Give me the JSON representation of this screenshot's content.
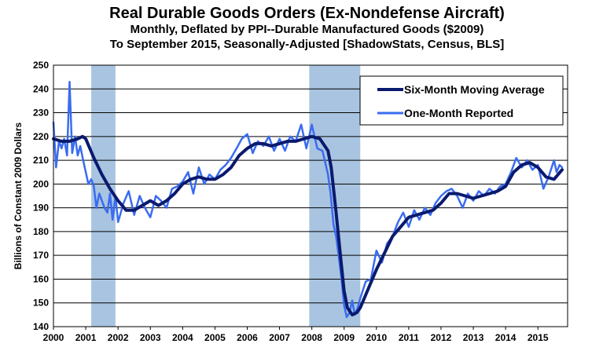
{
  "chart_data": {
    "type": "line",
    "title": "Real Durable Goods Orders (Ex-Nondefense Aircraft)",
    "subtitle_1": "Monthly, Deflated by PPI--Durable Manufactured Goods ($2009)",
    "subtitle_2": "To September 2015, Seasonally-Adjusted [ShadowStats, Census, BLS]",
    "ylabel": "Billions  of Constant 2009 Dollars",
    "xlabel": "",
    "ylim": [
      140,
      250
    ],
    "yticks": [
      140,
      150,
      160,
      170,
      180,
      190,
      200,
      210,
      220,
      230,
      240,
      250
    ],
    "xlim": [
      2000,
      2015.92
    ],
    "xticks": [
      "2000",
      "2001",
      "2002",
      "2003",
      "2004",
      "2005",
      "2006",
      "2007",
      "2008",
      "2009",
      "2010",
      "2011",
      "2012",
      "2013",
      "2014",
      "2015"
    ],
    "grid": "horizontal",
    "legend_position": "top-right",
    "recessions": [
      {
        "start": 2001.17,
        "end": 2001.92
      },
      {
        "start": 2007.92,
        "end": 2009.5
      }
    ],
    "colors": {
      "moving_average": "#0a1a6e",
      "one_month": "#3a6cf0",
      "recession": "#a9c4e0"
    },
    "series": [
      {
        "name": "Six-Month Moving Average",
        "x": [
          2000.0,
          2000.25,
          2000.5,
          2000.75,
          2000.9,
          2001.0,
          2001.25,
          2001.5,
          2001.75,
          2002.0,
          2002.25,
          2002.5,
          2002.75,
          2003.0,
          2003.25,
          2003.5,
          2003.75,
          2004.0,
          2004.25,
          2004.5,
          2004.75,
          2005.0,
          2005.25,
          2005.5,
          2005.75,
          2006.0,
          2006.25,
          2006.5,
          2006.75,
          2007.0,
          2007.25,
          2007.5,
          2007.75,
          2008.0,
          2008.25,
          2008.5,
          2008.6,
          2008.75,
          2008.9,
          2009.0,
          2009.1,
          2009.25,
          2009.4,
          2009.5,
          2009.75,
          2010.0,
          2010.25,
          2010.5,
          2010.75,
          2011.0,
          2011.25,
          2011.5,
          2011.75,
          2012.0,
          2012.25,
          2012.5,
          2012.75,
          2013.0,
          2013.25,
          2013.5,
          2013.75,
          2014.0,
          2014.25,
          2014.5,
          2014.75,
          2015.0,
          2015.25,
          2015.5,
          2015.75
        ],
        "values": [
          219,
          218,
          218,
          219,
          220,
          219,
          211,
          204,
          198,
          193,
          189,
          189,
          191,
          193,
          191,
          193,
          196,
          200,
          202,
          203,
          202,
          202,
          204,
          207,
          212,
          215,
          217,
          217,
          216,
          217,
          218,
          218,
          219,
          220,
          219,
          214,
          207,
          188,
          168,
          155,
          148,
          145,
          146,
          148,
          156,
          164,
          171,
          178,
          182,
          186,
          187,
          188,
          189,
          192,
          196,
          196,
          195,
          194,
          195,
          196,
          197,
          199,
          205,
          208,
          209,
          207,
          203,
          202,
          206
        ]
      },
      {
        "name": "One-Month Reported",
        "x": [
          2000.0,
          2000.08,
          2000.17,
          2000.25,
          2000.33,
          2000.42,
          2000.5,
          2000.58,
          2000.67,
          2000.75,
          2000.83,
          2000.92,
          2001.0,
          2001.08,
          2001.17,
          2001.25,
          2001.33,
          2001.42,
          2001.5,
          2001.58,
          2001.67,
          2001.75,
          2001.83,
          2001.92,
          2002.0,
          2002.17,
          2002.33,
          2002.5,
          2002.67,
          2002.83,
          2003.0,
          2003.17,
          2003.33,
          2003.5,
          2003.67,
          2003.83,
          2004.0,
          2004.17,
          2004.33,
          2004.5,
          2004.67,
          2004.83,
          2005.0,
          2005.17,
          2005.33,
          2005.5,
          2005.67,
          2005.83,
          2006.0,
          2006.17,
          2006.33,
          2006.5,
          2006.67,
          2006.83,
          2007.0,
          2007.17,
          2007.33,
          2007.5,
          2007.67,
          2007.83,
          2008.0,
          2008.17,
          2008.33,
          2008.5,
          2008.58,
          2008.67,
          2008.75,
          2008.83,
          2008.92,
          2009.0,
          2009.08,
          2009.17,
          2009.25,
          2009.33,
          2009.42,
          2009.5,
          2009.67,
          2009.83,
          2010.0,
          2010.17,
          2010.33,
          2010.5,
          2010.67,
          2010.83,
          2011.0,
          2011.17,
          2011.33,
          2011.5,
          2011.67,
          2011.83,
          2012.0,
          2012.17,
          2012.33,
          2012.5,
          2012.67,
          2012.83,
          2013.0,
          2013.17,
          2013.33,
          2013.5,
          2013.67,
          2013.83,
          2014.0,
          2014.17,
          2014.33,
          2014.5,
          2014.67,
          2014.83,
          2015.0,
          2015.17,
          2015.33,
          2015.5,
          2015.58,
          2015.67,
          2015.75
        ],
        "values": [
          226,
          207,
          218,
          215,
          219,
          212,
          243,
          213,
          220,
          212,
          216,
          210,
          205,
          200,
          202,
          199,
          190,
          196,
          193,
          190,
          188,
          196,
          185,
          195,
          184,
          192,
          197,
          187,
          195,
          190,
          186,
          195,
          193,
          190,
          198,
          199,
          201,
          205,
          196,
          207,
          200,
          204,
          202,
          206,
          208,
          211,
          215,
          219,
          221,
          213,
          218,
          216,
          220,
          214,
          219,
          214,
          220,
          218,
          225,
          215,
          225,
          215,
          214,
          204,
          196,
          183,
          178,
          170,
          160,
          149,
          144,
          146,
          151,
          145,
          148,
          152,
          159,
          160,
          172,
          167,
          175,
          178,
          184,
          188,
          182,
          189,
          185,
          190,
          187,
          192,
          195,
          197,
          198,
          195,
          190,
          196,
          193,
          197,
          195,
          198,
          196,
          199,
          200,
          205,
          211,
          207,
          210,
          206,
          208,
          198,
          203,
          210,
          205,
          208,
          207
        ]
      }
    ]
  }
}
